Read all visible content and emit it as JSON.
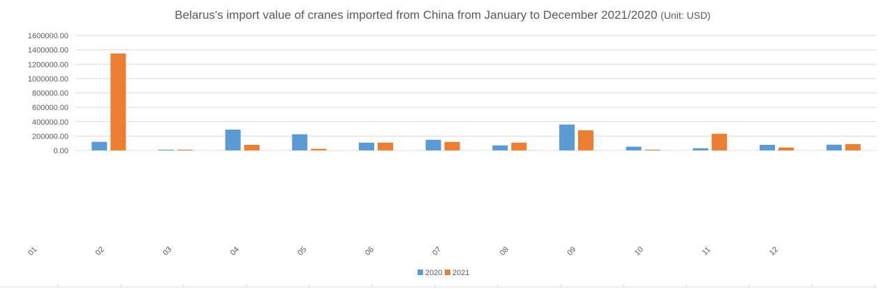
{
  "chart_data": {
    "type": "bar",
    "title_main": "Belarus's import value of cranes imported from China from January to December 2021/2020",
    "title_unit": "(Unit: USD)",
    "y_tick_labels": [
      "0.00",
      "200000.00",
      "400000.00",
      "600000.00",
      "800000.00",
      "1000000.00",
      "1200000.00",
      "1400000.00",
      "1600000.00"
    ],
    "ylim": [
      0,
      1600000
    ],
    "grid": true,
    "legend_position": "bottom",
    "x_tick_labels": [
      "01",
      "02",
      "03",
      "04",
      "05",
      "06",
      "07",
      "08",
      "09",
      "10",
      "11",
      "12"
    ],
    "groups": 12,
    "series": [
      {
        "name": "2020",
        "color": "#5B9BD5",
        "values": [
          120000,
          10000,
          290000,
          225000,
          108000,
          148000,
          70000,
          360000,
          52000,
          30000,
          78000,
          80000
        ]
      },
      {
        "name": "2021",
        "color": "#ED7D31",
        "values": [
          1350000,
          10000,
          78000,
          22000,
          108000,
          118000,
          108000,
          280000,
          10000,
          232000,
          40000,
          88000
        ]
      }
    ]
  }
}
